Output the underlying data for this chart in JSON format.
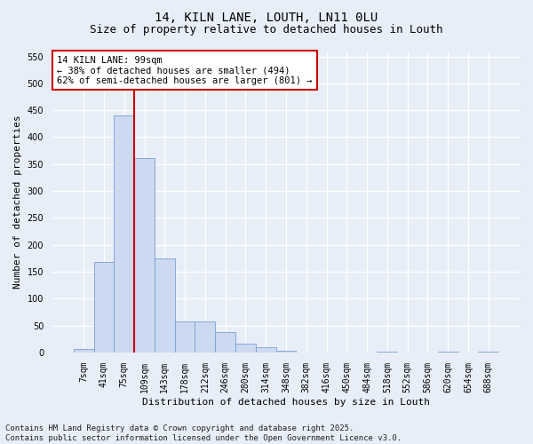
{
  "title1": "14, KILN LANE, LOUTH, LN11 0LU",
  "title2": "Size of property relative to detached houses in Louth",
  "xlabel": "Distribution of detached houses by size in Louth",
  "ylabel": "Number of detached properties",
  "categories": [
    "7sqm",
    "41sqm",
    "75sqm",
    "109sqm",
    "143sqm",
    "178sqm",
    "212sqm",
    "246sqm",
    "280sqm",
    "314sqm",
    "348sqm",
    "382sqm",
    "416sqm",
    "450sqm",
    "484sqm",
    "518sqm",
    "552sqm",
    "586sqm",
    "620sqm",
    "654sqm",
    "688sqm"
  ],
  "values": [
    7,
    168,
    440,
    362,
    175,
    57,
    57,
    38,
    17,
    10,
    4,
    0,
    0,
    0,
    0,
    2,
    0,
    0,
    1,
    0,
    2
  ],
  "bar_color": "#ccd9f0",
  "bar_edge_color": "#7a9fd4",
  "vline_x_idx": 3,
  "vline_color": "#cc0000",
  "annotation_text": "14 KILN LANE: 99sqm\n← 38% of detached houses are smaller (494)\n62% of semi-detached houses are larger (801) →",
  "annotation_box_color": "#ffffff",
  "annotation_box_edge": "#cc0000",
  "ylim": [
    0,
    560
  ],
  "yticks": [
    0,
    50,
    100,
    150,
    200,
    250,
    300,
    350,
    400,
    450,
    500,
    550
  ],
  "footer": "Contains HM Land Registry data © Crown copyright and database right 2025.\nContains public sector information licensed under the Open Government Licence v3.0.",
  "outer_bg_color": "#e8eef8",
  "plot_bg_color": "#e8eef8",
  "grid_color": "#ffffff",
  "title_fontsize": 10,
  "subtitle_fontsize": 9,
  "axis_label_fontsize": 8,
  "tick_fontsize": 7,
  "footer_fontsize": 6.5,
  "annotation_fontsize": 7.5
}
